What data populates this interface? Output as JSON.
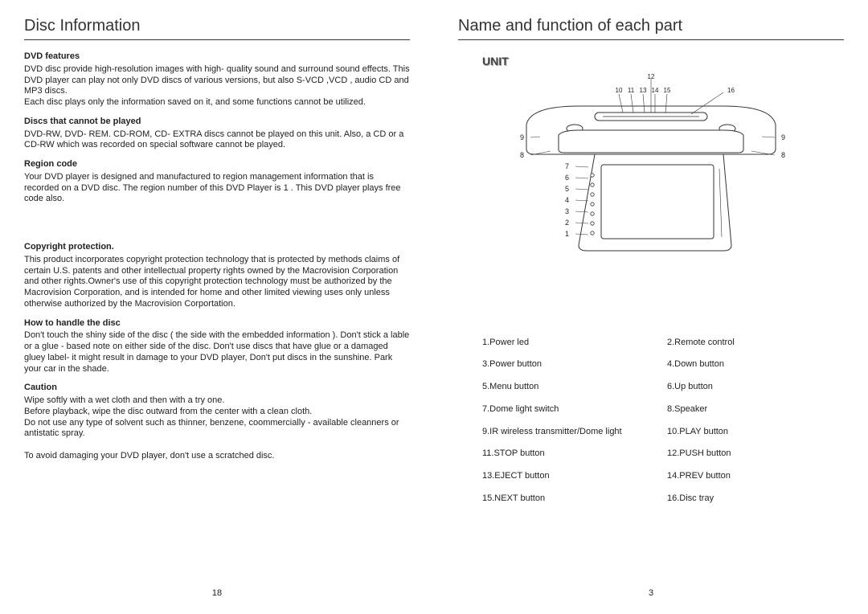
{
  "left": {
    "title": "Disc Information",
    "sections": [
      {
        "heading": "DVD features",
        "body": "DVD disc provide high-resolution images with high- quality sound and surround sound effects. This DVD player can play not only DVD discs of various versions, but also S-VCD ,VCD , audio CD and MP3 discs.\nEach disc plays only the information saved on it, and some functions cannot be utilized."
      },
      {
        "heading": "Discs that cannot be played",
        "body": "DVD-RW, DVD- REM. CD-ROM, CD- EXTRA discs cannot be played on this unit. Also, a CD or a CD-RW which was recorded on special software cannot be played."
      },
      {
        "heading": "Region code",
        "body": "Your DVD player is designed and manufactured to region management information that is recorded on a DVD disc. The region number of this DVD Player is 1 . This DVD player plays free code also."
      },
      {
        "heading": "Copyright protection.",
        "body": "This product incorporates copyright protection technology that is protected by methods claims of certain U.S. patents and other intellectual property rights owned by the Macrovision Corporation and other rights.Owner's use of this copyright protection technology must be authorized by the Macrovision Corporation, and is intended for home and other limited viewing uses only unless otherwise authorized by the Macrovision Corportation."
      },
      {
        "heading": "How to handle the disc",
        "body": "Don't touch the shiny side of the disc ( the side with the embedded information ). Don't stick a lable or a glue - based note on either side of the disc. Don't use discs that have glue or a damaged gluey label- it might result in damage to your DVD player, Don't put discs in the sunshine. Park your car in the shade."
      },
      {
        "heading": "Caution",
        "body": "Wipe softly with a wet cloth and then with a try one.\nBefore playback, wipe the disc outward from the center with a clean cloth.\nDo not use any type of solvent such as thinner, benzene, coommercially - available cleanners or antistatic spray.\n\nTo avoid damaging your DVD player, don't use a scratched disc."
      }
    ],
    "page_number": "18"
  },
  "right": {
    "title": "Name and function of each part",
    "unit_label": "UNIT",
    "diagram": {
      "top_labels": [
        "10",
        "11",
        "13",
        "14",
        "15",
        "12",
        "16"
      ],
      "side_labels_left": [
        "9",
        "8",
        "7",
        "6",
        "5",
        "4",
        "3",
        "2",
        "1"
      ],
      "side_labels_right": [
        "9",
        "8"
      ],
      "stroke": "#333333",
      "fill": "#ffffff"
    },
    "parts": [
      "1.Power led",
      "2.Remote control",
      "3.Power button",
      "4.Down button",
      "5.Menu button",
      "6.Up button",
      "7.Dome light switch",
      "8.Speaker",
      "9.IR wireless transmitter/Dome light",
      "10.PLAY button",
      "11.STOP button",
      "12.PUSH button",
      "13.EJECT button",
      "14.PREV button",
      "15.NEXT button",
      "16.Disc tray"
    ],
    "page_number": "3"
  }
}
